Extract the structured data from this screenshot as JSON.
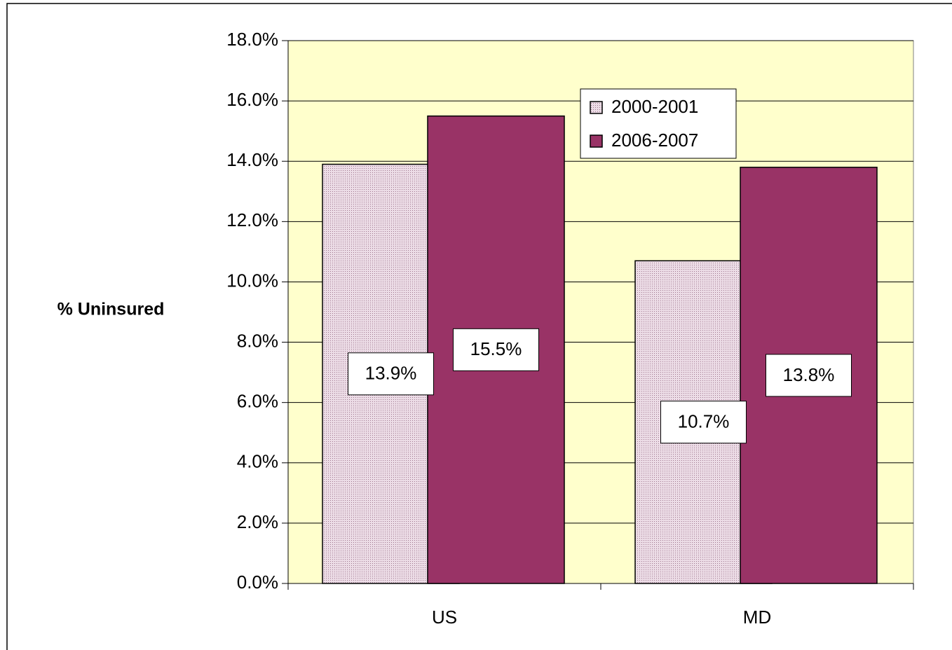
{
  "chart_data": {
    "type": "bar",
    "y_label": "% Uninsured",
    "categories": [
      "US",
      "MD"
    ],
    "series": [
      {
        "name": "2000-2001",
        "color": "#ecdce6",
        "values": [
          13.9,
          10.7
        ],
        "value_labels": [
          "13.9%",
          "10.7%"
        ]
      },
      {
        "name": "2006-2007",
        "color": "#993366",
        "values": [
          15.5,
          13.8
        ],
        "value_labels": [
          "15.5%",
          "13.8%"
        ]
      }
    ],
    "ylim": [
      0,
      18
    ],
    "yticks": [
      {
        "value": 0,
        "label": "0.0%"
      },
      {
        "value": 2,
        "label": "2.0%"
      },
      {
        "value": 4,
        "label": "4.0%"
      },
      {
        "value": 6,
        "label": "6.0%"
      },
      {
        "value": 8,
        "label": "8.0%"
      },
      {
        "value": 10,
        "label": "10.0%"
      },
      {
        "value": 12,
        "label": "12.0%"
      },
      {
        "value": 14,
        "label": "14.0%"
      },
      {
        "value": 16,
        "label": "16.0%"
      },
      {
        "value": 18,
        "label": "18.0%"
      }
    ],
    "grid": true,
    "background": "#ffffcc"
  }
}
